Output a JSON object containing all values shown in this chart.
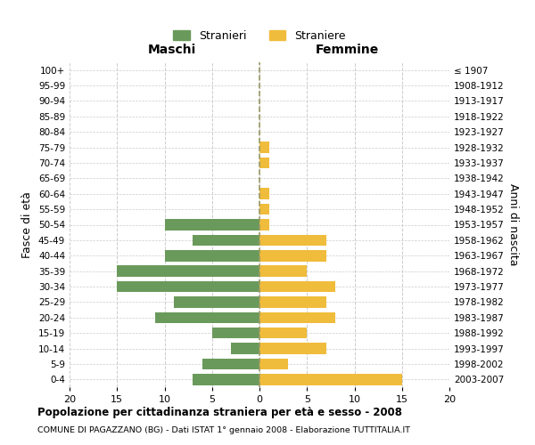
{
  "age_groups": [
    "100+",
    "95-99",
    "90-94",
    "85-89",
    "80-84",
    "75-79",
    "70-74",
    "65-69",
    "60-64",
    "55-59",
    "50-54",
    "45-49",
    "40-44",
    "35-39",
    "30-34",
    "25-29",
    "20-24",
    "15-19",
    "10-14",
    "5-9",
    "0-4"
  ],
  "birth_years": [
    "≤ 1907",
    "1908-1912",
    "1913-1917",
    "1918-1922",
    "1923-1927",
    "1928-1932",
    "1933-1937",
    "1938-1942",
    "1943-1947",
    "1948-1952",
    "1953-1957",
    "1958-1962",
    "1963-1967",
    "1968-1972",
    "1973-1977",
    "1978-1982",
    "1983-1987",
    "1988-1992",
    "1993-1997",
    "1998-2002",
    "2003-2007"
  ],
  "maschi": [
    0,
    0,
    0,
    0,
    0,
    0,
    0,
    0,
    0,
    0,
    10,
    7,
    10,
    15,
    15,
    9,
    11,
    5,
    3,
    6,
    7
  ],
  "femmine": [
    0,
    0,
    0,
    0,
    0,
    1,
    1,
    0,
    1,
    1,
    1,
    7,
    7,
    5,
    8,
    7,
    8,
    5,
    7,
    3,
    15
  ],
  "color_maschi": "#6a9a5b",
  "color_femmine": "#f0bc3c",
  "title": "Popolazione per cittadinanza straniera per età e sesso - 2008",
  "subtitle": "COMUNE DI PAGAZZANO (BG) - Dati ISTAT 1° gennaio 2008 - Elaborazione TUTTITALIA.IT",
  "xlabel_left": "Maschi",
  "xlabel_right": "Femmine",
  "ylabel_left": "Fasce di età",
  "ylabel_right": "Anni di nascita",
  "legend_stranieri": "Stranieri",
  "legend_straniere": "Straniere",
  "xlim": 20,
  "background_color": "#ffffff",
  "grid_color": "#cccccc"
}
